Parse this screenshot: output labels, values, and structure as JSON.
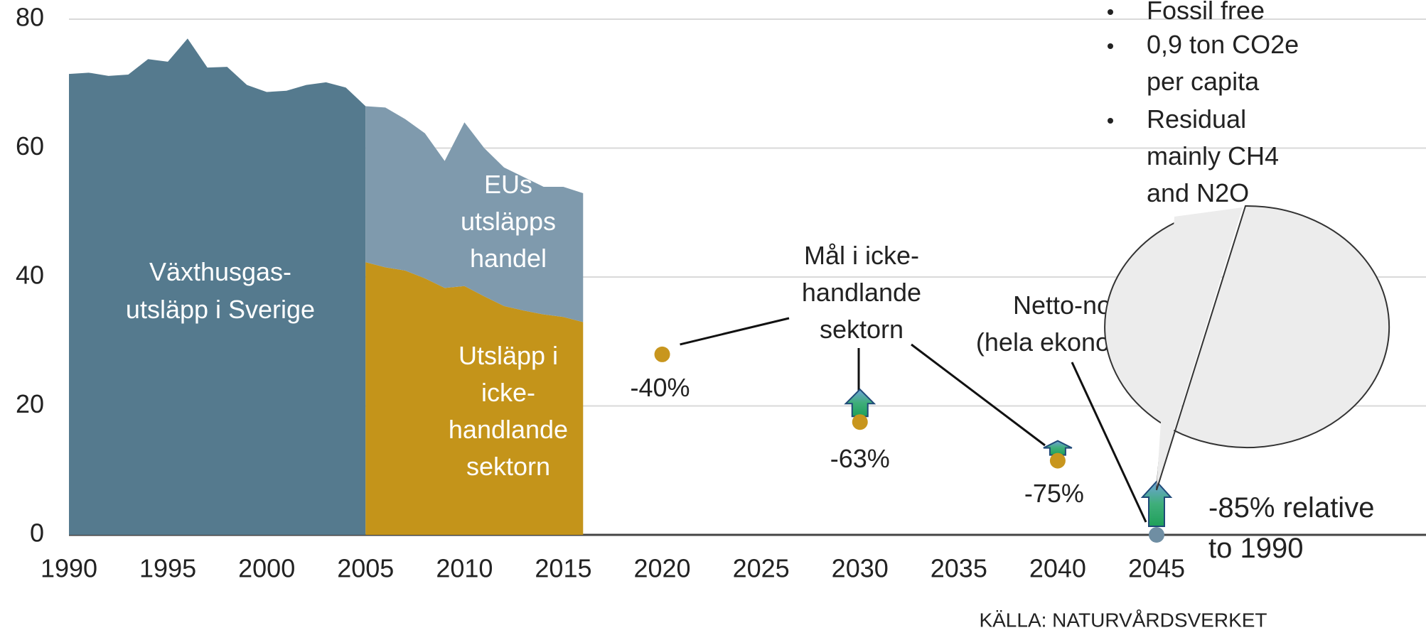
{
  "chart_data": {
    "type": "area",
    "x": [
      1990,
      1991,
      1992,
      1993,
      1994,
      1995,
      1996,
      1997,
      1998,
      1999,
      2000,
      2001,
      2002,
      2003,
      2004,
      2005,
      2006,
      2007,
      2008,
      2009,
      2010,
      2011,
      2012,
      2013,
      2014,
      2015,
      2016
    ],
    "series": [
      {
        "name": "Växthusgas-\nutsläpp i Sverige",
        "color": "#557a8e",
        "values": [
          71.5,
          71.7,
          71.2,
          71.4,
          73.8,
          73.4,
          77,
          72.5,
          72.6,
          69.8,
          68.7,
          68.9,
          69.8,
          70.2,
          69.4,
          66.5,
          null,
          null,
          null,
          null,
          null,
          null,
          null,
          null,
          null,
          null,
          null
        ]
      },
      {
        "name": "Utsläpp i\nicke-\nhandlande\nsektorn",
        "color": "#c4941a",
        "values": [
          null,
          null,
          null,
          null,
          null,
          null,
          null,
          null,
          null,
          null,
          null,
          null,
          null,
          null,
          null,
          42.3,
          41.5,
          41,
          39.8,
          38.3,
          38.6,
          37,
          35.5,
          34.8,
          34.2,
          33.8,
          33
        ]
      },
      {
        "name": "EUs\nutsläpps\nhandel",
        "color": "#7f9aad",
        "values": [
          null,
          null,
          null,
          null,
          null,
          null,
          null,
          null,
          null,
          null,
          null,
          null,
          null,
          null,
          null,
          24.2,
          24.8,
          23.5,
          22.5,
          19.7,
          25.4,
          23,
          21.5,
          20.7,
          19.8,
          20.2,
          20
        ]
      }
    ],
    "targets": {
      "x": [
        2020,
        2030,
        2040,
        2045
      ],
      "values": [
        28,
        17.5,
        11.5,
        0
      ],
      "labels": [
        "-40%",
        "-63%",
        "-75%",
        "-85% relative\nto 1990"
      ],
      "colors": [
        "#c8961e",
        "#c8961e",
        "#c8961e",
        "#6f8ea3"
      ]
    },
    "annotations": [
      "Mål i icke-\nhandlande\nsektorn",
      "Netto-noll\n(hela ekonomin)"
    ],
    "bubble": [
      "Fossil free",
      "0,9 ton CO2e\nper capita",
      "Residual\nmainly CH4\nand N2O"
    ],
    "source": "KÄLLA: NATURVÅRDSVERKET",
    "xlim": [
      1990,
      2045
    ],
    "xticks": [
      1990,
      1995,
      2000,
      2005,
      2010,
      2015,
      2020,
      2025,
      2030,
      2035,
      2040,
      2045
    ],
    "ylim": [
      0,
      80
    ],
    "yticks": [
      0,
      20,
      40,
      60,
      80
    ],
    "grid": true
  }
}
